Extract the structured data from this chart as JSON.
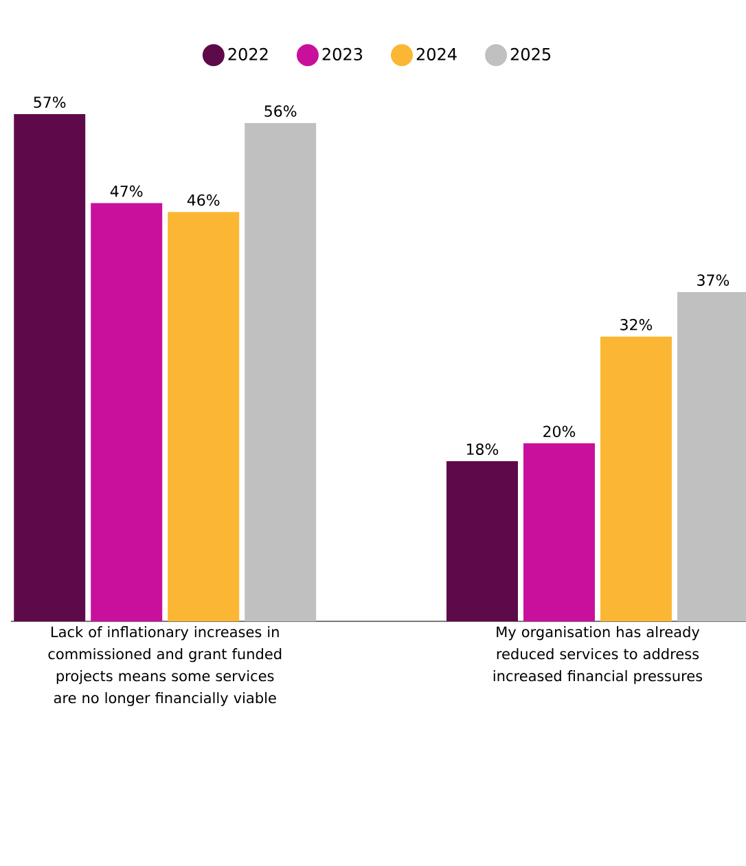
{
  "chart_data": {
    "type": "bar",
    "categories": [
      "Lack of inflationary increases in commissioned and grant funded projects means some services are no longer financially viable",
      "My organisation has already reduced services to address increased financial pressures"
    ],
    "series": [
      {
        "name": "2022",
        "color": "#5e0a4a",
        "values": [
          57,
          18
        ],
        "value_labels": [
          "57%",
          "18%"
        ]
      },
      {
        "name": "2023",
        "color": "#c8109c",
        "values": [
          47,
          20
        ],
        "value_labels": [
          "47%",
          "20%"
        ]
      },
      {
        "name": "2024",
        "color": "#fbb733",
        "values": [
          46,
          32
        ],
        "value_labels": [
          "46%",
          "32%"
        ]
      },
      {
        "name": "2025",
        "color": "#c0c0c0",
        "values": [
          56,
          37
        ],
        "value_labels": [
          "56%",
          "37%"
        ]
      }
    ],
    "legend": "top",
    "tick_labels": "x"
  }
}
